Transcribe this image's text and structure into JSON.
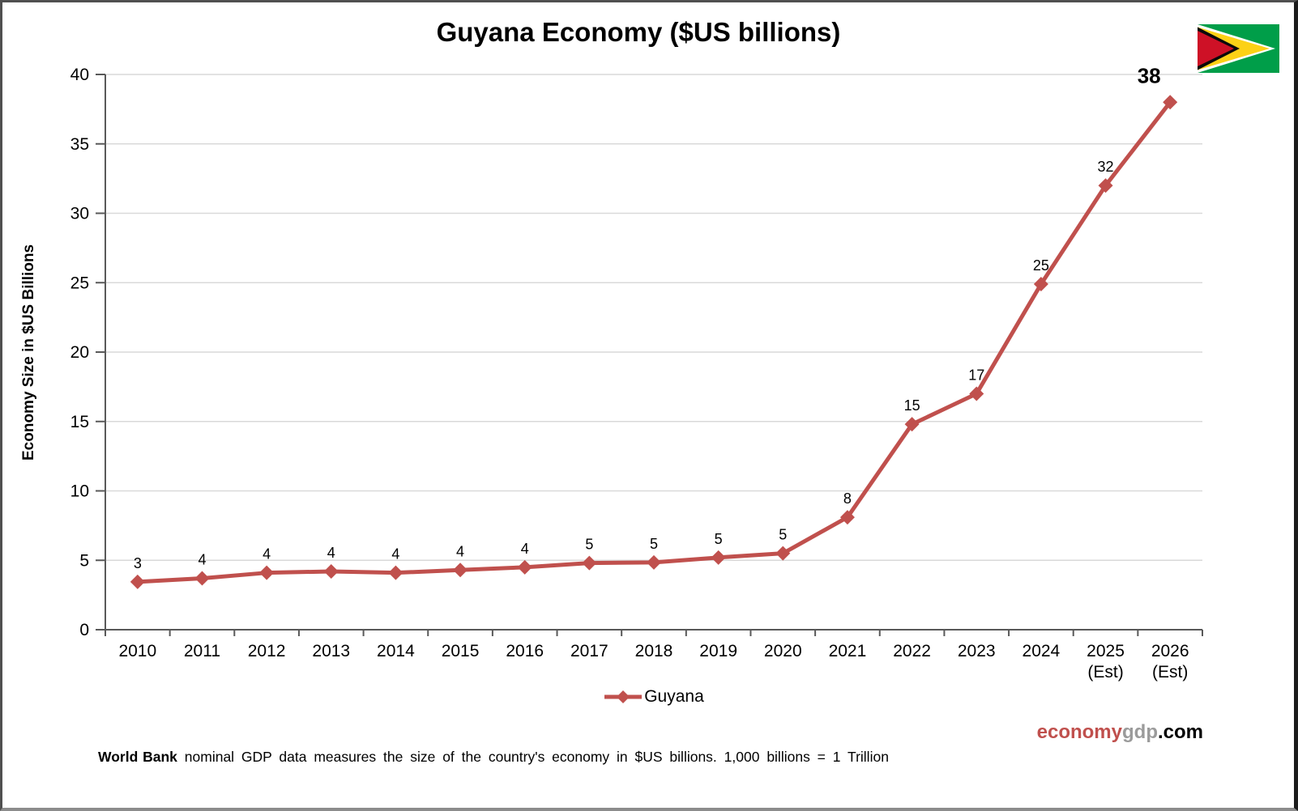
{
  "title": "Guyana Economy ($US billions)",
  "chart_data": {
    "type": "line",
    "title": "Guyana Economy ($US billions)",
    "xlabel": "",
    "ylabel": "Economy Size in $US Billions",
    "ylim": [
      0,
      40
    ],
    "yticks": [
      0,
      5,
      10,
      15,
      20,
      25,
      30,
      35,
      40
    ],
    "grid": "horizontal",
    "legend_position": "bottom-center",
    "categories": [
      "2010",
      "2011",
      "2012",
      "2013",
      "2014",
      "2015",
      "2016",
      "2017",
      "2018",
      "2019",
      "2020",
      "2021",
      "2022",
      "2023",
      "2024",
      "2025 (Est)",
      "2026 (Est)"
    ],
    "x_tick_lines": [
      [
        "2010"
      ],
      [
        "2011"
      ],
      [
        "2012"
      ],
      [
        "2013"
      ],
      [
        "2014"
      ],
      [
        "2015"
      ],
      [
        "2016"
      ],
      [
        "2017"
      ],
      [
        "2018"
      ],
      [
        "2019"
      ],
      [
        "2020"
      ],
      [
        "2021"
      ],
      [
        "2022"
      ],
      [
        "2023"
      ],
      [
        "2024"
      ],
      [
        "2025",
        "(Est)"
      ],
      [
        "2026",
        "(Est)"
      ]
    ],
    "series": [
      {
        "name": "Guyana",
        "color": "#c0504d",
        "marker": "diamond",
        "values": [
          3.45,
          3.7,
          4.1,
          4.2,
          4.1,
          4.3,
          4.5,
          4.8,
          4.85,
          5.2,
          5.5,
          8.1,
          14.8,
          17.0,
          24.9,
          32.0,
          38.0
        ],
        "point_labels": [
          "3",
          "4",
          "4",
          "4",
          "4",
          "4",
          "4",
          "5",
          "5",
          "5",
          "5",
          "8",
          "15",
          "17",
          "25",
          "32",
          "38"
        ],
        "emphasize_last_label": true
      }
    ]
  },
  "legend": {
    "label": "Guyana"
  },
  "flag": {
    "name": "Guyana flag"
  },
  "branding": {
    "economy": "economy",
    "gdp": "gdp",
    "dotcom": ".com"
  },
  "footer": {
    "bold": "World Bank",
    "rest": " nominal GDP data measures the size of the country's economy in $US billions. 1,000 billions = 1 Trillion"
  },
  "colors": {
    "series_line": "#c0504d",
    "axis": "#595959",
    "gridline": "#d9d9d9",
    "text": "#000000",
    "flag_green": "#009e49",
    "flag_gold": "#fcd116",
    "flag_red": "#ce1126",
    "flag_white": "#ffffff",
    "flag_black": "#0a0a0a"
  }
}
